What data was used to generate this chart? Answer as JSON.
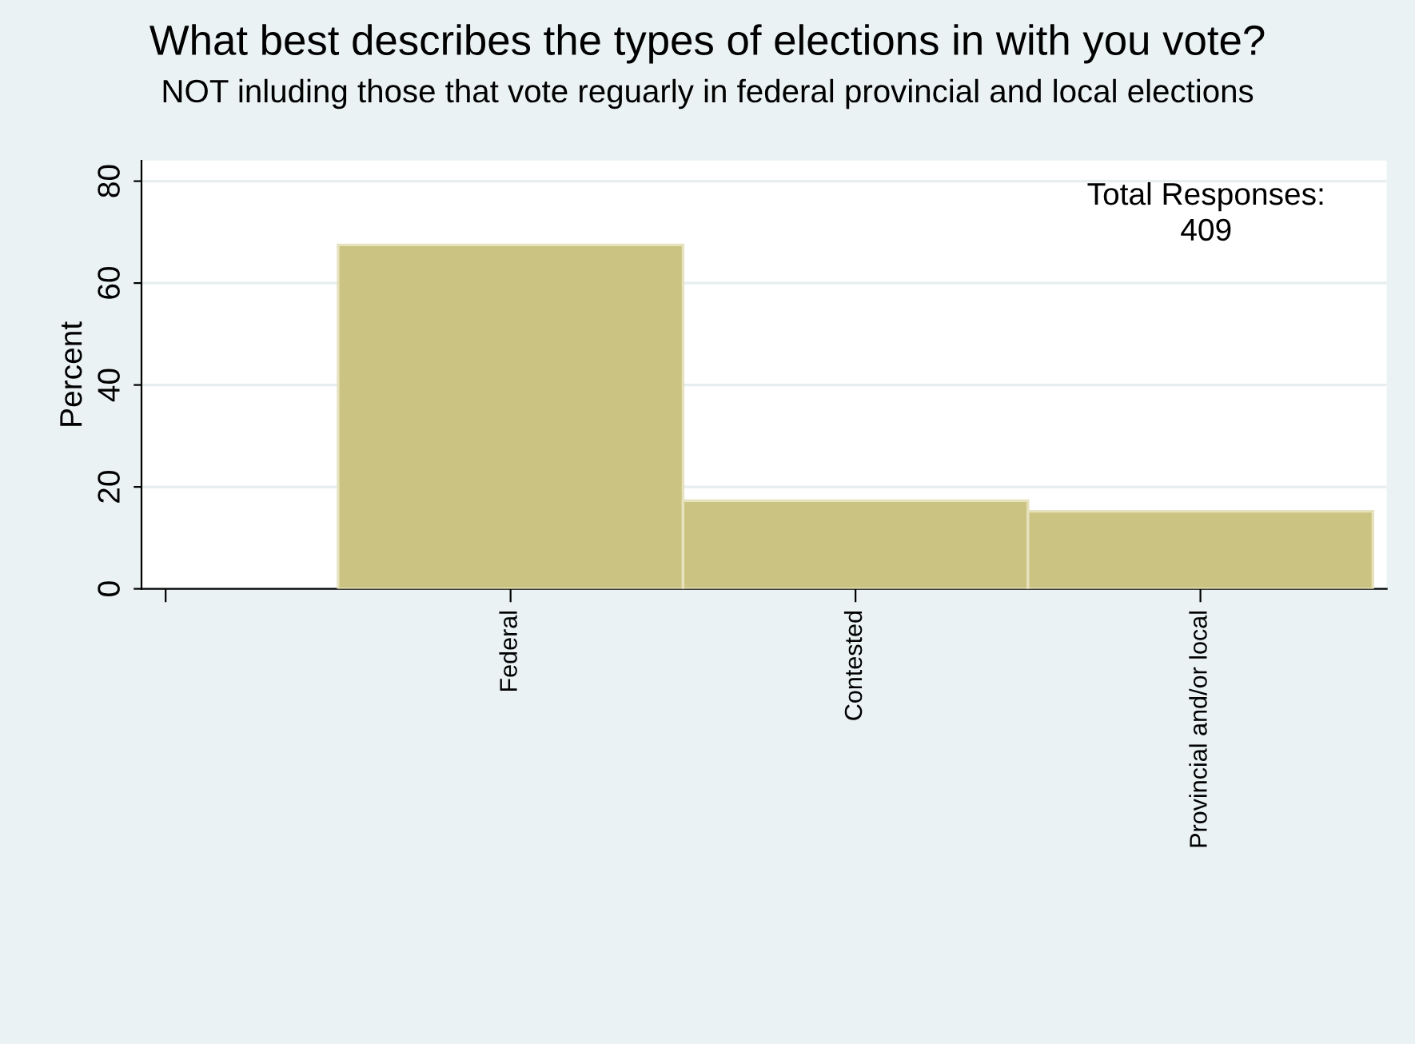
{
  "chart_data": {
    "type": "bar",
    "title": "What best describes the types of elections in with you vote?",
    "subtitle": "NOT inluding those that vote reguarly in federal provincial and local elections",
    "ylabel": "Percent",
    "categories": [
      null,
      "Federal",
      "Contested",
      "Provincial and/or local"
    ],
    "values": [
      null,
      67.5,
      17.3,
      15.2
    ],
    "color": "#cbc382",
    "ylim": [
      0,
      84
    ],
    "yticks": [
      0,
      20,
      40,
      60,
      80
    ],
    "grid": "y",
    "annotations": [
      "Total Responses:\n409"
    ]
  }
}
